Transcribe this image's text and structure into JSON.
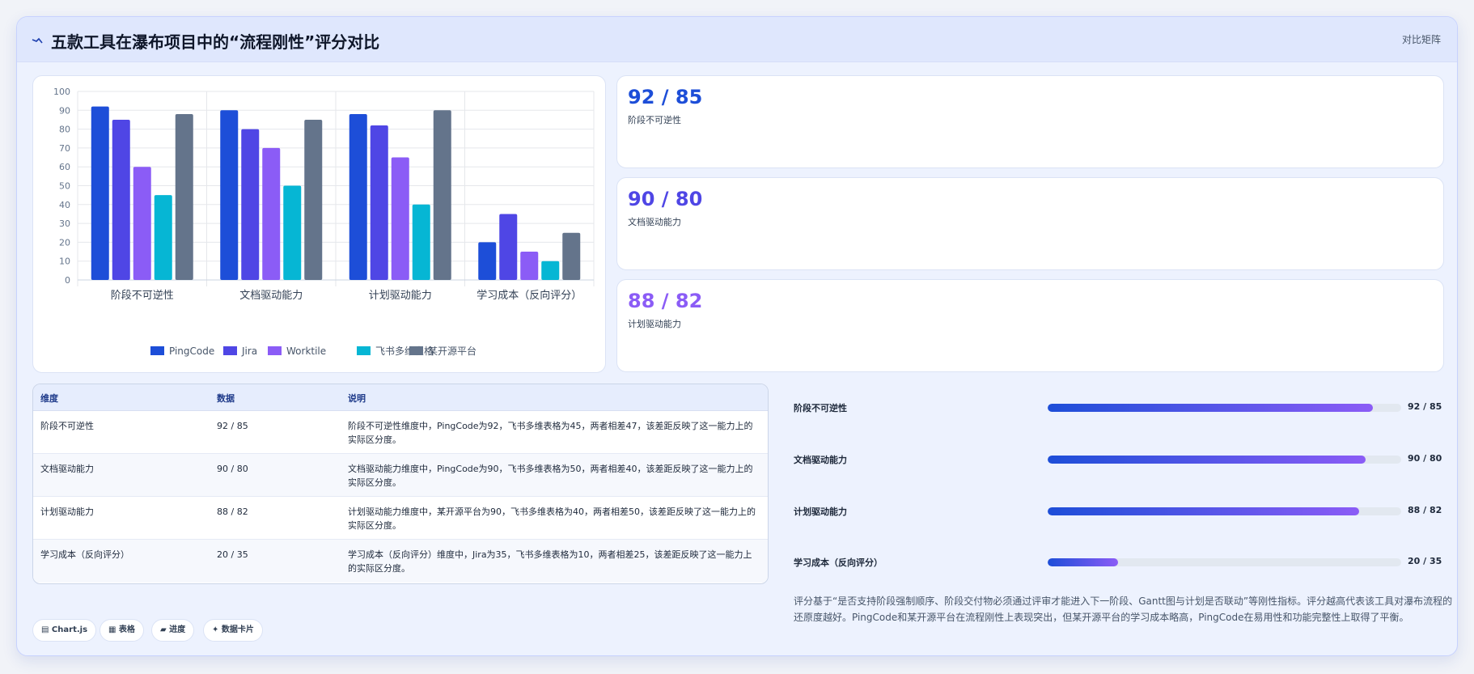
{
  "header": {
    "title": "五款工具在瀑布项目中的“流程刚性”评分对比",
    "tag": "对比矩阵",
    "icon": "trend-icon"
  },
  "chart_data": {
    "type": "bar",
    "categories": [
      "阶段不可逆性",
      "文档驱动能力",
      "计划驱动能力",
      "学习成本（反向评分）"
    ],
    "series": [
      {
        "name": "PingCode",
        "color": "#1d4ed8",
        "values": [
          92,
          90,
          88,
          20
        ]
      },
      {
        "name": "Jira",
        "color": "#4f46e5",
        "values": [
          85,
          80,
          82,
          35
        ]
      },
      {
        "name": "Worktile",
        "color": "#8b5cf6",
        "values": [
          60,
          70,
          65,
          15
        ]
      },
      {
        "name": "飞书多维表格",
        "color": "#06b6d4",
        "values": [
          45,
          50,
          40,
          10
        ]
      },
      {
        "name": "某开源平台",
        "color": "#64748b",
        "values": [
          88,
          85,
          90,
          25
        ]
      }
    ],
    "ylim": [
      0,
      100
    ],
    "yticks": [
      0,
      10,
      20,
      30,
      40,
      50,
      60,
      70,
      80,
      90,
      100
    ],
    "grid": true,
    "legend": "bottom",
    "title": "",
    "xlabel": "",
    "ylabel": ""
  },
  "stats": [
    {
      "value": "92 / 85",
      "label": "阶段不可逆性",
      "color": "#1d4ed8"
    },
    {
      "value": "90 / 80",
      "label": "文档驱动能力",
      "color": "#4f46e5"
    },
    {
      "value": "88 / 82",
      "label": "计划驱动能力",
      "color": "#8b5cf6"
    }
  ],
  "table": {
    "headers": [
      "维度",
      "数据",
      "说明"
    ],
    "rows": [
      {
        "dim": "阶段不可逆性",
        "data": "92 / 85",
        "desc": "阶段不可逆性维度中，PingCode为92，飞书多维表格为45，两者相差47，该差距反映了这一能力上的实际区分度。"
      },
      {
        "dim": "文档驱动能力",
        "data": "90 / 80",
        "desc": "文档驱动能力维度中，PingCode为90，飞书多维表格为50，两者相差40，该差距反映了这一能力上的实际区分度。"
      },
      {
        "dim": "计划驱动能力",
        "data": "88 / 82",
        "desc": "计划驱动能力维度中，某开源平台为90，飞书多维表格为40，两者相差50，该差距反映了这一能力上的实际区分度。"
      },
      {
        "dim": "学习成本（反向评分）",
        "data": "20 / 35",
        "desc": "学习成本（反向评分）维度中，Jira为35，飞书多维表格为10，两者相差25，该差距反映了这一能力上的实际区分度。"
      }
    ]
  },
  "progress": [
    {
      "label": "阶段不可逆性",
      "value": "92 / 85",
      "percent": 92
    },
    {
      "label": "文档驱动能力",
      "value": "90 / 80",
      "percent": 90
    },
    {
      "label": "计划驱动能力",
      "value": "88 / 82",
      "percent": 88
    },
    {
      "label": "学习成本（反向评分）",
      "value": "20 / 35",
      "percent": 20
    }
  ],
  "summary": "评分基于“是否支持阶段强制顺序、阶段交付物必须通过评审才能进入下一阶段、Gantt图与计划是否联动”等刚性指标。评分越高代表该工具对瀑布流程的还原度越好。PingCode和某开源平台在流程刚性上表现突出，但某开源平台的学习成本略高，PingCode在易用性和功能完整性上取得了平衡。",
  "chips": [
    {
      "label": "▤ Chart.js"
    },
    {
      "label": "▦ 表格"
    },
    {
      "label": "▰ 进度"
    },
    {
      "label": "✦ 数据卡片"
    }
  ]
}
